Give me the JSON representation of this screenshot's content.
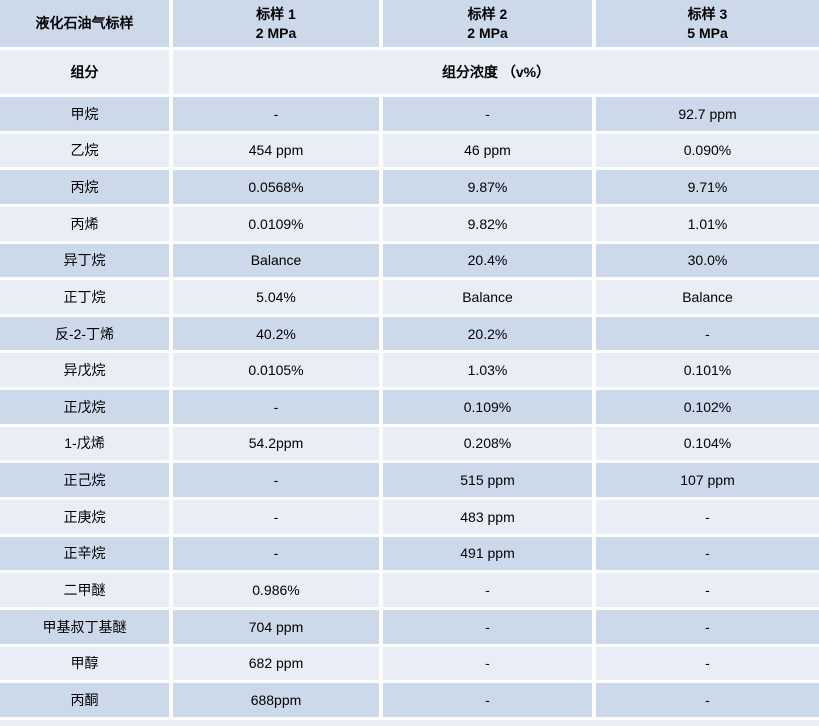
{
  "chart_data": {
    "type": "table",
    "corner_header": "液化石油气标样",
    "sample_headers": [
      {
        "label": "标样 1",
        "pressure": "2 MPa"
      },
      {
        "label": "标样 2",
        "pressure": "2 MPa"
      },
      {
        "label": "标样 3",
        "pressure": "5 MPa"
      }
    ],
    "subheader": {
      "component": "组分",
      "concentration": "组分浓度 （v%）"
    },
    "rows": [
      {
        "component": "甲烷",
        "values": [
          "-",
          "-",
          "92.7 ppm"
        ]
      },
      {
        "component": "乙烷",
        "values": [
          "454 ppm",
          "46 ppm",
          "0.090%"
        ]
      },
      {
        "component": "丙烷",
        "values": [
          "0.0568%",
          "9.87%",
          "9.71%"
        ]
      },
      {
        "component": "丙烯",
        "values": [
          "0.0109%",
          "9.82%",
          "1.01%"
        ]
      },
      {
        "component": "异丁烷",
        "values": [
          "Balance",
          "20.4%",
          "30.0%"
        ]
      },
      {
        "component": "正丁烷",
        "values": [
          "5.04%",
          "Balance",
          "Balance"
        ]
      },
      {
        "component": "反-2-丁烯",
        "values": [
          "40.2%",
          "20.2%",
          "-"
        ]
      },
      {
        "component": "异戊烷",
        "values": [
          "0.0105%",
          "1.03%",
          "0.101%"
        ]
      },
      {
        "component": "正戊烷",
        "values": [
          "-",
          "0.109%",
          "0.102%"
        ]
      },
      {
        "component": "1-戊烯",
        "values": [
          "54.2ppm",
          "0.208%",
          "0.104%"
        ]
      },
      {
        "component": "正己烷",
        "values": [
          "-",
          "515 ppm",
          "107 ppm"
        ]
      },
      {
        "component": "正庚烷",
        "values": [
          "-",
          "483 ppm",
          "-"
        ]
      },
      {
        "component": "正辛烷",
        "values": [
          "-",
          "491 ppm",
          "-"
        ]
      },
      {
        "component": "二甲醚",
        "values": [
          "0.986%",
          "-",
          "-"
        ]
      },
      {
        "component": "甲基叔丁基醚",
        "values": [
          "704 ppm",
          "-",
          "-"
        ]
      },
      {
        "component": "甲醇",
        "values": [
          "682 ppm",
          "-",
          "-"
        ]
      },
      {
        "component": "丙酮",
        "values": [
          "688ppm",
          "-",
          "-"
        ]
      }
    ],
    "colors": {
      "band_dark": "#cbd9eb",
      "band_light": "#e9eef6",
      "background": "#ffffff",
      "text": "#000000"
    }
  }
}
